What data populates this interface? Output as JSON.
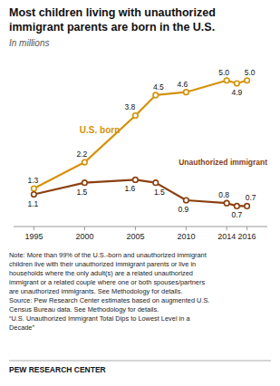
{
  "chart_data": {
    "type": "line",
    "title": "Most children living with unauthorized\nimmigrant parents are born in the U.S.",
    "subtitle": "In millions",
    "x": [
      1995,
      2000,
      2005,
      2007,
      2010,
      2014,
      2015,
      2016
    ],
    "series": [
      {
        "name": "U.S. born",
        "color": "#D4920A",
        "values": [
          1.3,
          2.2,
          3.8,
          4.5,
          4.6,
          5.0,
          4.9,
          5.0
        ],
        "value_labels": [
          "1.3",
          "2.2",
          "3.8",
          "4.5",
          "4.6",
          "5.0",
          "4.9",
          "5.0"
        ]
      },
      {
        "name": "Unauthorized immigrant",
        "color": "#8B4010",
        "values": [
          1.1,
          1.5,
          1.6,
          1.5,
          0.9,
          0.8,
          0.7,
          0.7
        ],
        "value_labels": [
          "1.1",
          "1.5",
          "1.6",
          "1.5",
          "0.9",
          "0.8",
          "0.7",
          "0.7"
        ]
      }
    ],
    "xlim": [
      1993,
      2018
    ],
    "ylim": [
      0.0,
      5.8
    ],
    "xticks": [
      1995,
      2000,
      2005,
      2010,
      2014,
      2016
    ],
    "tick_labels": "x",
    "data_labels": true,
    "marker": "circle",
    "annotations": [
      "Note: More than 99% of the U.S.-born and unauthorized immigrant\nchildren live with their unauthorized immigrant parents or live in\nhouseholds where the only adult(s) are a related unauthorized\nimmigrant or a related couple where one or both spouses/partners\nare unauthorized immigrants. See Methodology for details.\nSource: Pew Research Center estimates based on augmented U.S.\nCensus Bureau data. See Methodology for details.\n“U.S. Unauthorized Immigrant Total Dips to Lowest Level in a\nDecade”",
      "PEW RESEARCH CENTER"
    ]
  }
}
